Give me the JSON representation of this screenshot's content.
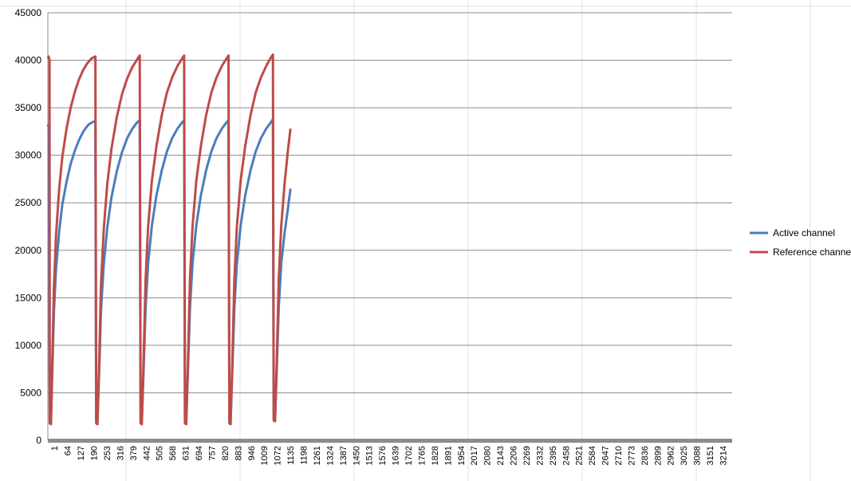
{
  "chart_data": {
    "type": "line",
    "title": "",
    "xlabel": "",
    "ylabel": "",
    "ylim": [
      0,
      45000
    ],
    "yticks": [
      0,
      5000,
      10000,
      15000,
      20000,
      25000,
      30000,
      35000,
      40000,
      45000
    ],
    "x_tick_labels": [
      "1",
      "64",
      "127",
      "190",
      "253",
      "316",
      "379",
      "442",
      "505",
      "568",
      "631",
      "694",
      "757",
      "820",
      "883",
      "946",
      "1009",
      "1072",
      "1135",
      "1198",
      "1261",
      "1324",
      "1387",
      "1450",
      "1513",
      "1576",
      "1639",
      "1702",
      "1765",
      "1828",
      "1891",
      "1954",
      "2017",
      "2080",
      "2143",
      "2206",
      "2269",
      "2332",
      "2395",
      "2458",
      "2521",
      "2584",
      "2647",
      "2710",
      "2773",
      "2836",
      "2899",
      "2962",
      "3025",
      "3088",
      "3151",
      "3214"
    ],
    "x_range": [
      1,
      3270
    ],
    "grid": "horizontal",
    "legend_position": "right",
    "series": [
      {
        "name": "Active channel",
        "color": "#4a7ebb",
        "points": [
          [
            1,
            33000
          ],
          [
            5,
            33300
          ],
          [
            10,
            2200
          ],
          [
            16,
            2100
          ],
          [
            22,
            7000
          ],
          [
            30,
            13500
          ],
          [
            40,
            18000
          ],
          [
            55,
            22000
          ],
          [
            70,
            24800
          ],
          [
            90,
            27200
          ],
          [
            110,
            29100
          ],
          [
            130,
            30500
          ],
          [
            150,
            31600
          ],
          [
            170,
            32500
          ],
          [
            190,
            33100
          ],
          [
            200,
            33300
          ],
          [
            215,
            33500
          ],
          [
            228,
            33600
          ],
          [
            232,
            2200
          ],
          [
            238,
            2000
          ],
          [
            246,
            7200
          ],
          [
            255,
            13800
          ],
          [
            268,
            18500
          ],
          [
            285,
            22400
          ],
          [
            305,
            25600
          ],
          [
            330,
            28300
          ],
          [
            355,
            30300
          ],
          [
            380,
            31800
          ],
          [
            405,
            32800
          ],
          [
            425,
            33400
          ],
          [
            440,
            33700
          ],
          [
            444,
            2200
          ],
          [
            450,
            2000
          ],
          [
            458,
            7000
          ],
          [
            468,
            14000
          ],
          [
            480,
            18600
          ],
          [
            498,
            22600
          ],
          [
            520,
            25800
          ],
          [
            545,
            28400
          ],
          [
            570,
            30400
          ],
          [
            595,
            31800
          ],
          [
            620,
            32800
          ],
          [
            640,
            33400
          ],
          [
            652,
            33700
          ],
          [
            656,
            2200
          ],
          [
            662,
            2000
          ],
          [
            670,
            7200
          ],
          [
            680,
            14000
          ],
          [
            692,
            18600
          ],
          [
            710,
            22600
          ],
          [
            732,
            25800
          ],
          [
            757,
            28400
          ],
          [
            782,
            30400
          ],
          [
            807,
            31800
          ],
          [
            832,
            32800
          ],
          [
            852,
            33400
          ],
          [
            864,
            33700
          ],
          [
            868,
            2200
          ],
          [
            874,
            2000
          ],
          [
            882,
            7200
          ],
          [
            892,
            14000
          ],
          [
            904,
            18600
          ],
          [
            922,
            22600
          ],
          [
            944,
            25800
          ],
          [
            969,
            28400
          ],
          [
            994,
            30400
          ],
          [
            1019,
            31800
          ],
          [
            1044,
            32800
          ],
          [
            1064,
            33400
          ],
          [
            1076,
            33800
          ],
          [
            1080,
            2300
          ],
          [
            1086,
            2100
          ],
          [
            1094,
            7200
          ],
          [
            1104,
            14000
          ],
          [
            1116,
            18600
          ],
          [
            1132,
            21800
          ],
          [
            1148,
            24400
          ],
          [
            1160,
            26500
          ]
        ]
      },
      {
        "name": "Reference channel",
        "color": "#be4b48",
        "points": [
          [
            1,
            40200
          ],
          [
            5,
            40400
          ],
          [
            9,
            40000
          ],
          [
            10,
            1800
          ],
          [
            16,
            1700
          ],
          [
            22,
            8000
          ],
          [
            30,
            16000
          ],
          [
            40,
            21500
          ],
          [
            55,
            26500
          ],
          [
            70,
            29800
          ],
          [
            90,
            32800
          ],
          [
            110,
            35000
          ],
          [
            130,
            36700
          ],
          [
            150,
            38000
          ],
          [
            170,
            39000
          ],
          [
            190,
            39700
          ],
          [
            210,
            40200
          ],
          [
            228,
            40400
          ],
          [
            232,
            1800
          ],
          [
            238,
            1700
          ],
          [
            246,
            8000
          ],
          [
            255,
            16500
          ],
          [
            268,
            22200
          ],
          [
            285,
            27000
          ],
          [
            305,
            30700
          ],
          [
            330,
            34000
          ],
          [
            355,
            36400
          ],
          [
            380,
            38100
          ],
          [
            405,
            39300
          ],
          [
            425,
            40000
          ],
          [
            440,
            40500
          ],
          [
            444,
            1800
          ],
          [
            450,
            1700
          ],
          [
            458,
            8000
          ],
          [
            468,
            17000
          ],
          [
            480,
            22500
          ],
          [
            498,
            27300
          ],
          [
            520,
            31000
          ],
          [
            545,
            34200
          ],
          [
            570,
            36600
          ],
          [
            595,
            38200
          ],
          [
            620,
            39400
          ],
          [
            640,
            40100
          ],
          [
            652,
            40500
          ],
          [
            656,
            1800
          ],
          [
            662,
            1700
          ],
          [
            670,
            8000
          ],
          [
            680,
            17000
          ],
          [
            692,
            22500
          ],
          [
            710,
            27300
          ],
          [
            732,
            31000
          ],
          [
            757,
            34200
          ],
          [
            782,
            36600
          ],
          [
            807,
            38200
          ],
          [
            832,
            39400
          ],
          [
            852,
            40100
          ],
          [
            864,
            40500
          ],
          [
            868,
            1800
          ],
          [
            874,
            1700
          ],
          [
            882,
            8000
          ],
          [
            892,
            17000
          ],
          [
            904,
            22500
          ],
          [
            922,
            27300
          ],
          [
            944,
            31000
          ],
          [
            969,
            34200
          ],
          [
            994,
            36600
          ],
          [
            1019,
            38200
          ],
          [
            1044,
            39400
          ],
          [
            1064,
            40200
          ],
          [
            1076,
            40600
          ],
          [
            1080,
            2100
          ],
          [
            1086,
            2000
          ],
          [
            1094,
            8000
          ],
          [
            1104,
            17000
          ],
          [
            1116,
            22500
          ],
          [
            1132,
            27000
          ],
          [
            1148,
            30500
          ],
          [
            1160,
            32800
          ]
        ]
      }
    ]
  }
}
